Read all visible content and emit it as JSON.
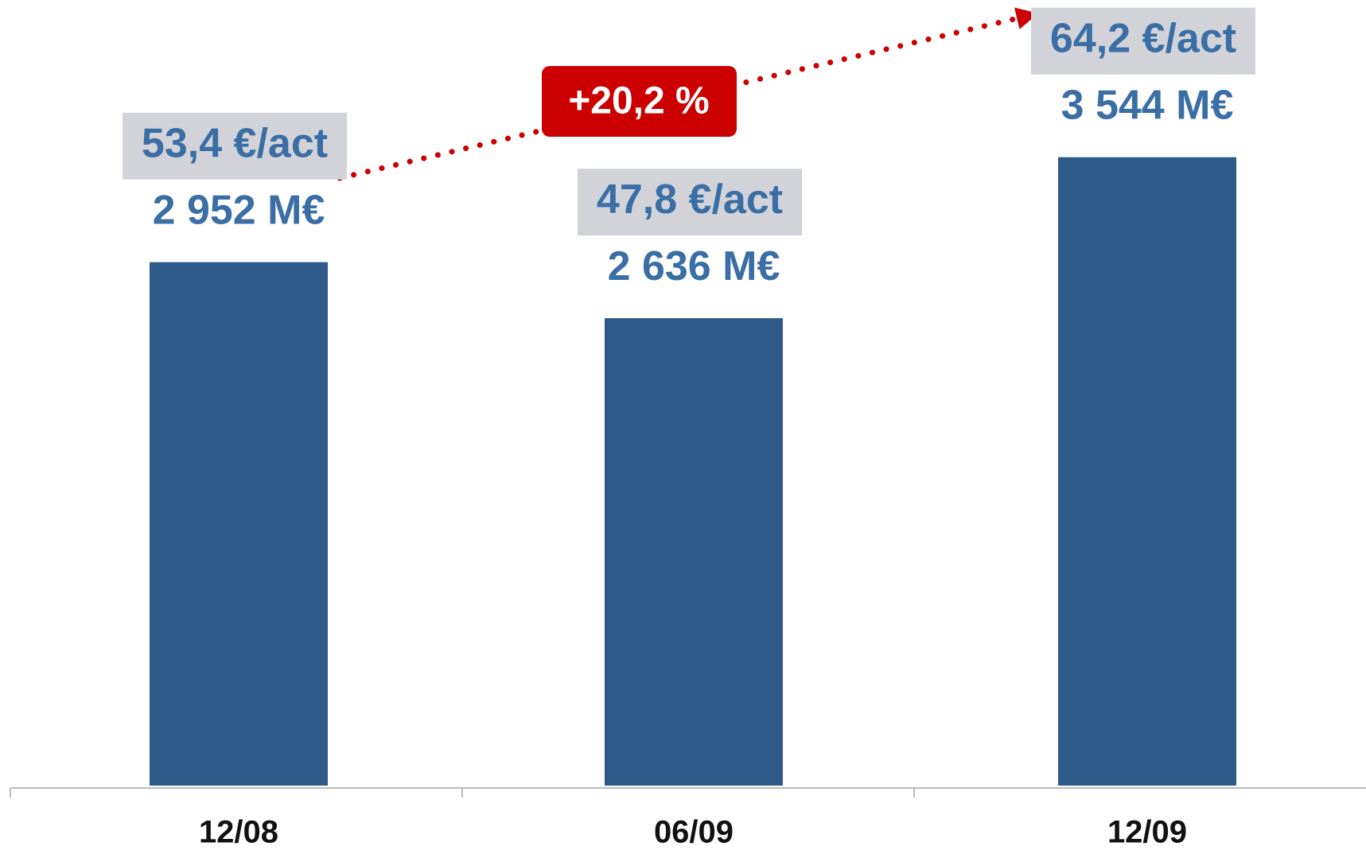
{
  "chart_data": {
    "type": "bar",
    "categories": [
      "12/08",
      "06/09",
      "12/09"
    ],
    "values": [
      2952,
      2636,
      3544
    ],
    "value_labels": [
      "2 952 M€",
      "2 636 M€",
      "3 544 M€"
    ],
    "per_share_labels": [
      "53,4 €/act",
      "47,8 €/act",
      "64,2 €/act"
    ],
    "growth_label": "+20,2 %",
    "color": "#2e5a8a",
    "ylim": [
      0,
      4000
    ]
  }
}
